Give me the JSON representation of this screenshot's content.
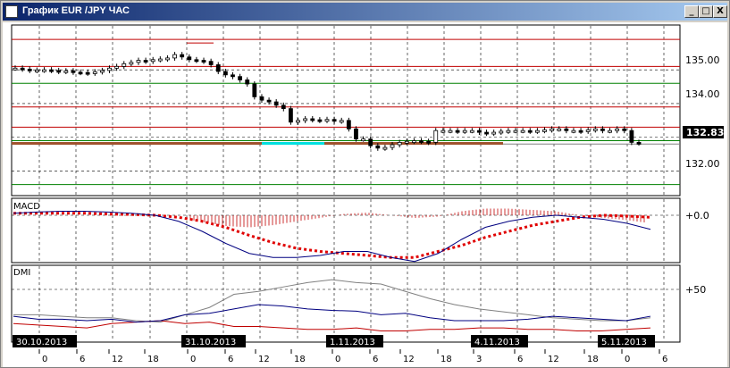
{
  "window": {
    "title": "График EUR /JPY ЧАС",
    "buttons": {
      "minimize": "_",
      "maximize": "□",
      "close": "X"
    }
  },
  "price_pane": {
    "current_price_label": "132.83",
    "axis_labels": [
      "135.00",
      "134.00",
      "132.00"
    ]
  },
  "macd_pane": {
    "label": "MACD",
    "axis_label": "+0.0"
  },
  "dmi_pane": {
    "label": "DMI",
    "axis_label": "+50"
  },
  "date_labels": [
    "30.10.2013",
    "31.10.2013",
    "1.11.2013",
    "4.11.2013",
    "5.11.2013"
  ],
  "hour_labels": [
    "0",
    "6",
    "12",
    "18",
    "0",
    "6",
    "12",
    "18",
    "0",
    "6",
    "12",
    "18",
    "3",
    "6",
    "12",
    "18",
    "0",
    "6"
  ],
  "colors": {
    "up": "#008000",
    "down": "#c00000",
    "macd_signal": "#e00000",
    "macd_line": "#000080",
    "dmi_adx": "#808080"
  },
  "chart_data": {
    "type": "line",
    "title": "",
    "price": {
      "values": [
        135.05,
        135.02,
        134.98,
        134.99,
        135.0,
        134.98,
        134.95,
        134.97,
        134.93,
        134.92,
        134.9,
        134.94,
        134.98,
        135.05,
        135.1,
        135.18,
        135.22,
        135.28,
        135.25,
        135.3,
        135.32,
        135.35,
        135.45,
        135.38,
        135.3,
        135.28,
        135.25,
        135.15,
        134.95,
        134.85,
        134.8,
        134.7,
        134.58,
        134.2,
        134.1,
        134.05,
        133.95,
        133.85,
        133.45,
        133.5,
        133.55,
        133.52,
        133.5,
        133.53,
        133.48,
        133.5,
        133.25,
        132.95,
        132.95,
        132.75,
        132.68,
        132.7,
        132.78,
        132.85,
        132.88,
        132.9,
        132.88,
        132.85,
        133.2,
        133.2,
        133.2,
        133.18,
        133.2,
        133.2,
        133.15,
        133.12,
        133.15,
        133.18,
        133.2,
        133.2,
        133.2,
        133.18,
        133.2,
        133.22,
        133.25,
        133.25,
        133.2,
        133.2,
        133.18,
        133.22,
        133.25,
        133.2,
        133.2,
        133.25,
        133.2,
        132.85,
        132.83
      ],
      "ylim": [
        131.3,
        136.3
      ]
    },
    "macd": {
      "macd_line": [
        0.05,
        0.08,
        0.1,
        0.1,
        0.08,
        0.05,
        0.0,
        -0.15,
        -0.4,
        -0.7,
        -0.95,
        -1.05,
        -1.05,
        -1.0,
        -0.9,
        -0.9,
        -1.05,
        -1.15,
        -0.95,
        -0.6,
        -0.3,
        -0.15,
        -0.05,
        0.0,
        -0.05,
        -0.1,
        -0.2,
        -0.35
      ],
      "signal_line": [
        0.05,
        0.05,
        0.05,
        0.05,
        0.03,
        0.02,
        0.0,
        -0.05,
        -0.15,
        -0.3,
        -0.5,
        -0.68,
        -0.82,
        -0.9,
        -0.95,
        -1.0,
        -1.05,
        -1.05,
        -0.9,
        -0.75,
        -0.55,
        -0.4,
        -0.25,
        -0.15,
        -0.05,
        0.0,
        -0.02,
        -0.05
      ]
    },
    "dmi": {
      "plus_di": [
        28,
        24,
        24,
        22,
        24,
        20,
        22,
        30,
        32,
        38,
        44,
        42,
        38,
        36,
        35,
        30,
        32,
        26,
        22,
        22,
        22,
        24,
        28,
        26,
        24,
        22,
        28
      ],
      "minus_di": [
        18,
        16,
        14,
        12,
        18,
        20,
        22,
        18,
        20,
        14,
        14,
        12,
        10,
        10,
        12,
        8,
        8,
        10,
        10,
        12,
        12,
        10,
        10,
        8,
        8,
        10,
        12
      ],
      "adx": [
        30,
        30,
        28,
        26,
        26,
        22,
        20,
        30,
        40,
        58,
        62,
        68,
        74,
        78,
        74,
        72,
        62,
        52,
        44,
        38,
        34,
        30,
        26,
        24,
        22,
        22,
        26
      ]
    }
  }
}
